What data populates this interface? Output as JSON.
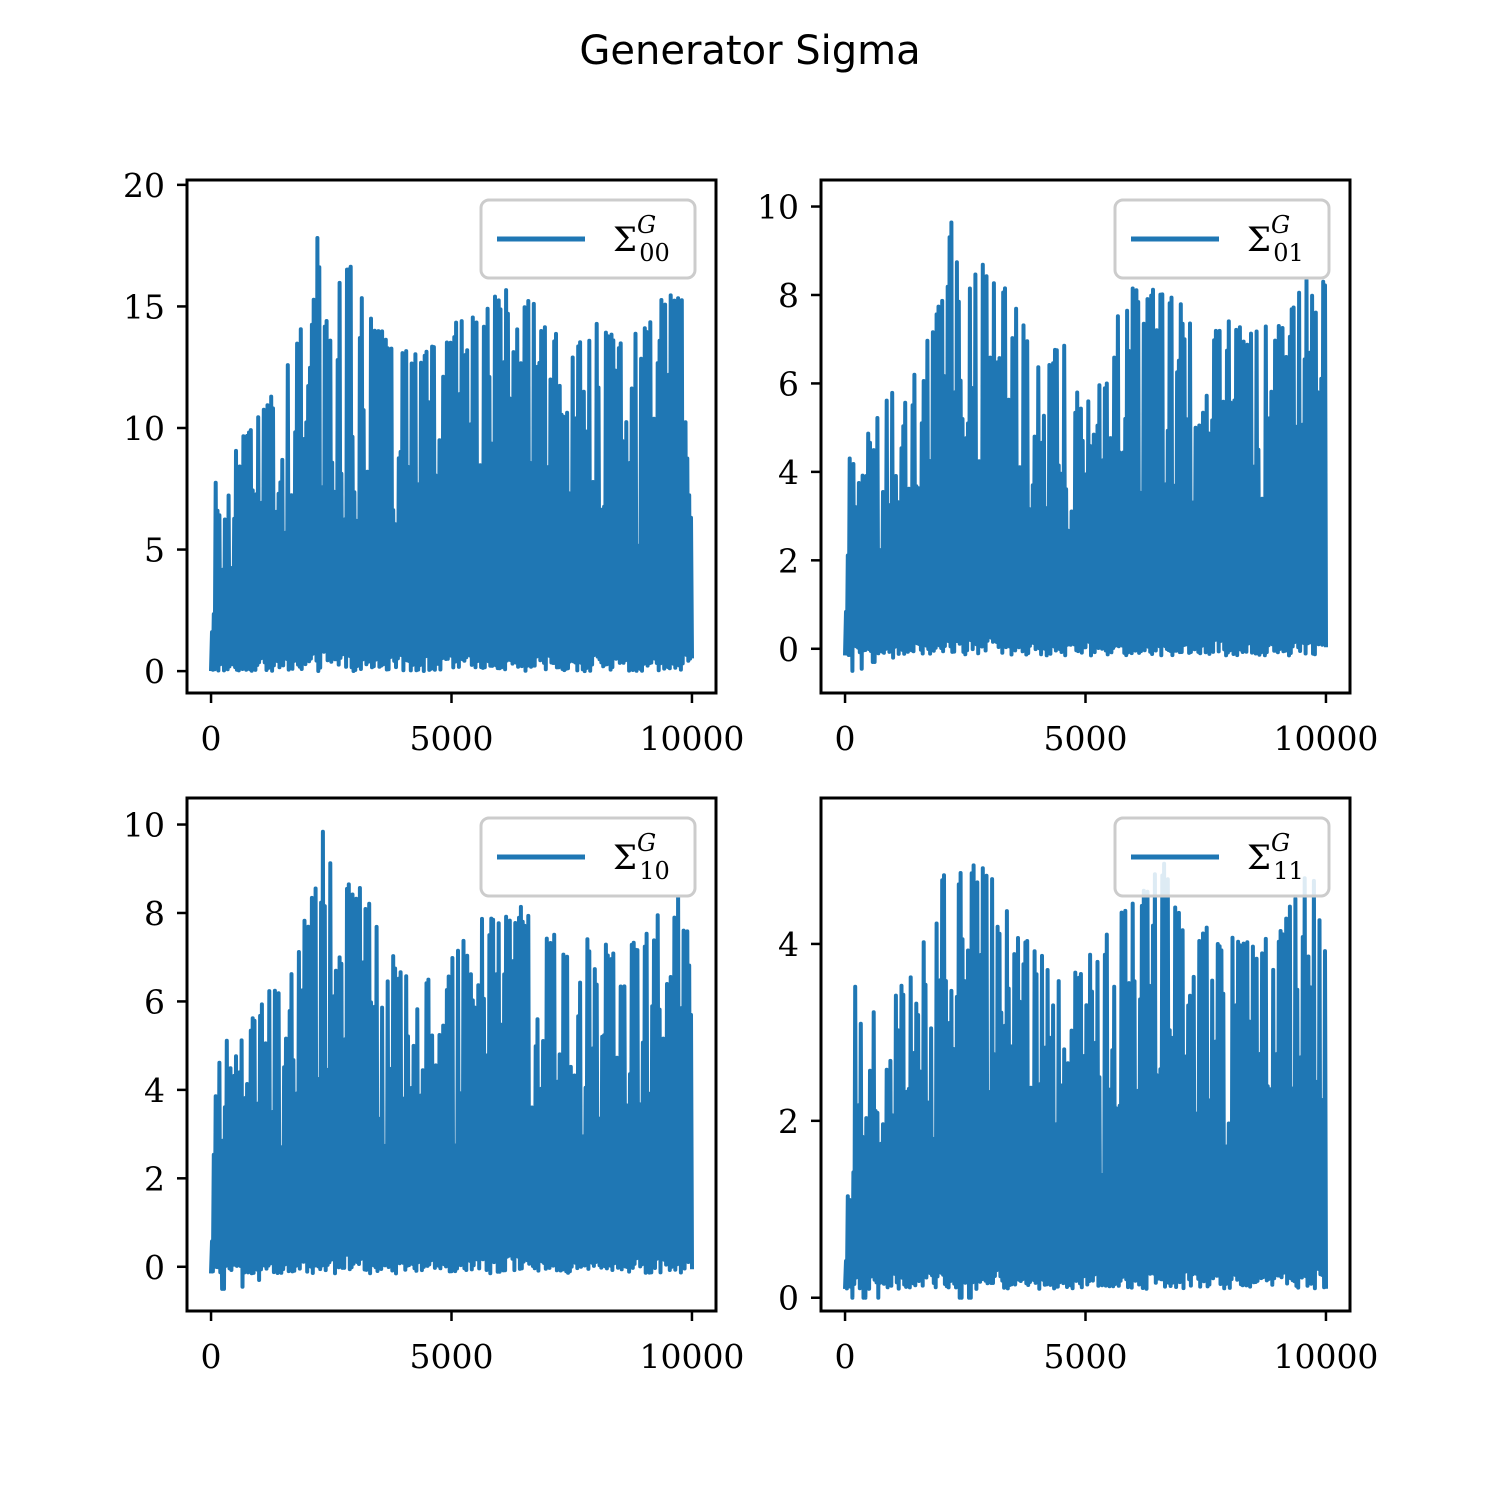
{
  "figure": {
    "title": "Generator Sigma"
  },
  "chart_data": [
    {
      "type": "line",
      "panel": "top-left",
      "series": [
        {
          "name": "Σ",
          "sup": "G",
          "sub": "00",
          "color": "#1f77b4"
        }
      ],
      "x_range": [
        0,
        10000
      ],
      "xlim": [
        -500,
        10500
      ],
      "ylim": [
        -0.9,
        20.2
      ],
      "xticks": [
        0,
        5000,
        10000
      ],
      "yticks": [
        0,
        5,
        10,
        15,
        20
      ],
      "xtick_labels": [
        "0",
        "5000",
        "10000"
      ],
      "ytick_labels": [
        "0",
        "5",
        "10",
        "15",
        "20"
      ],
      "grid": false,
      "legend": "upper right",
      "min_value": 0.0,
      "dips": [],
      "envelope": [
        [
          0,
          0
        ],
        [
          100,
          8.5
        ],
        [
          300,
          8.4
        ],
        [
          600,
          9.4
        ],
        [
          900,
          10.5
        ],
        [
          1300,
          11.6
        ],
        [
          1700,
          13.0
        ],
        [
          2000,
          15.2
        ],
        [
          2200,
          18.9
        ],
        [
          2250,
          19.3
        ],
        [
          2400,
          18.4
        ],
        [
          2600,
          16.6
        ],
        [
          3000,
          16.8
        ],
        [
          3200,
          14.8
        ],
        [
          3700,
          13.8
        ],
        [
          4000,
          13.7
        ],
        [
          4500,
          13.2
        ],
        [
          4900,
          13.9
        ],
        [
          5200,
          14.6
        ],
        [
          5600,
          14.8
        ],
        [
          6000,
          15.7
        ],
        [
          6500,
          15.7
        ],
        [
          7000,
          14.5
        ],
        [
          7500,
          13.4
        ],
        [
          8000,
          14.8
        ],
        [
          8500,
          13.5
        ],
        [
          9000,
          14.4
        ],
        [
          9500,
          15.6
        ],
        [
          10000,
          16.3
        ]
      ]
    },
    {
      "type": "line",
      "panel": "top-right",
      "series": [
        {
          "name": "Σ",
          "sup": "G",
          "sub": "01",
          "color": "#1f77b4"
        }
      ],
      "x_range": [
        0,
        10000
      ],
      "xlim": [
        -500,
        10500
      ],
      "ylim": [
        -1.0,
        10.6
      ],
      "xticks": [
        0,
        5000,
        10000
      ],
      "yticks": [
        0,
        2,
        4,
        6,
        8,
        10
      ],
      "xtick_labels": [
        "0",
        "5000",
        "10000"
      ],
      "ytick_labels": [
        "0",
        "2",
        "4",
        "6",
        "8",
        "10"
      ],
      "grid": false,
      "legend": "upper right",
      "min_value": -0.15,
      "dips": [
        [
          150,
          -0.5
        ],
        [
          350,
          -0.45
        ],
        [
          600,
          -0.3
        ],
        [
          1000,
          -0.2
        ]
      ],
      "envelope": [
        [
          0,
          0
        ],
        [
          100,
          4.6
        ],
        [
          250,
          5.3
        ],
        [
          500,
          4.9
        ],
        [
          900,
          5.8
        ],
        [
          1200,
          6.4
        ],
        [
          1600,
          6.6
        ],
        [
          1900,
          7.8
        ],
        [
          2000,
          8.0
        ],
        [
          2200,
          9.9
        ],
        [
          2300,
          10.1
        ],
        [
          2500,
          9.5
        ],
        [
          2800,
          8.9
        ],
        [
          3200,
          8.5
        ],
        [
          3700,
          7.5
        ],
        [
          4000,
          6.6
        ],
        [
          4500,
          6.9
        ],
        [
          4900,
          7.0
        ],
        [
          5300,
          7.5
        ],
        [
          5600,
          7.7
        ],
        [
          6000,
          8.2
        ],
        [
          6500,
          8.3
        ],
        [
          7000,
          7.9
        ],
        [
          7500,
          7.2
        ],
        [
          8000,
          7.6
        ],
        [
          8500,
          7.2
        ],
        [
          9000,
          7.5
        ],
        [
          9500,
          8.4
        ],
        [
          10000,
          8.6
        ]
      ]
    },
    {
      "type": "line",
      "panel": "bottom-left",
      "series": [
        {
          "name": "Σ",
          "sup": "G",
          "sub": "10",
          "color": "#1f77b4"
        }
      ],
      "x_range": [
        0,
        10000
      ],
      "xlim": [
        -500,
        10500
      ],
      "ylim": [
        -1.0,
        10.6
      ],
      "xticks": [
        0,
        5000,
        10000
      ],
      "yticks": [
        0,
        2,
        4,
        6,
        8,
        10
      ],
      "xtick_labels": [
        "0",
        "5000",
        "10000"
      ],
      "ytick_labels": [
        "0",
        "2",
        "4",
        "6",
        "8",
        "10"
      ],
      "grid": false,
      "legend": "upper right",
      "min_value": -0.15,
      "dips": [
        [
          250,
          -0.5
        ],
        [
          650,
          -0.45
        ],
        [
          1000,
          -0.3
        ]
      ],
      "envelope": [
        [
          0,
          0
        ],
        [
          100,
          4.6
        ],
        [
          250,
          5.3
        ],
        [
          500,
          4.9
        ],
        [
          900,
          5.8
        ],
        [
          1200,
          6.4
        ],
        [
          1600,
          6.6
        ],
        [
          1900,
          7.8
        ],
        [
          2000,
          8.0
        ],
        [
          2200,
          9.9
        ],
        [
          2300,
          10.1
        ],
        [
          2500,
          9.5
        ],
        [
          2800,
          8.9
        ],
        [
          3200,
          8.5
        ],
        [
          3700,
          7.5
        ],
        [
          4000,
          6.6
        ],
        [
          4500,
          6.9
        ],
        [
          4900,
          7.0
        ],
        [
          5300,
          7.5
        ],
        [
          5600,
          7.9
        ],
        [
          6000,
          8.2
        ],
        [
          6500,
          8.3
        ],
        [
          7000,
          7.9
        ],
        [
          7500,
          7.2
        ],
        [
          8000,
          7.6
        ],
        [
          8500,
          7.2
        ],
        [
          9000,
          7.5
        ],
        [
          9500,
          8.4
        ],
        [
          10000,
          8.6
        ]
      ]
    },
    {
      "type": "line",
      "panel": "bottom-right",
      "series": [
        {
          "name": "Σ",
          "sup": "G",
          "sub": "11",
          "color": "#1f77b4"
        }
      ],
      "x_range": [
        0,
        10000
      ],
      "xlim": [
        -500,
        10500
      ],
      "ylim": [
        -0.15,
        5.65
      ],
      "xticks": [
        0,
        5000,
        10000
      ],
      "yticks": [
        0,
        2,
        4
      ],
      "xtick_labels": [
        "0",
        "5000",
        "10000"
      ],
      "ytick_labels": [
        "0",
        "2",
        "4"
      ],
      "grid": false,
      "legend": "upper right",
      "min_value": 0.1,
      "dips": [
        [
          150,
          0.0
        ],
        [
          400,
          0.0
        ],
        [
          700,
          0.0
        ],
        [
          2400,
          0.0
        ],
        [
          2600,
          0.0
        ]
      ],
      "envelope": [
        [
          0,
          0
        ],
        [
          100,
          2.4
        ],
        [
          200,
          3.7
        ],
        [
          350,
          3.0
        ],
        [
          500,
          2.3
        ],
        [
          600,
          3.9
        ],
        [
          800,
          3.3
        ],
        [
          1000,
          3.5
        ],
        [
          1300,
          3.6
        ],
        [
          1600,
          4.0
        ],
        [
          1900,
          4.5
        ],
        [
          2000,
          4.7
        ],
        [
          2200,
          5.5
        ],
        [
          2300,
          5.6
        ],
        [
          2500,
          5.2
        ],
        [
          2800,
          5.0
        ],
        [
          3200,
          4.9
        ],
        [
          3700,
          4.2
        ],
        [
          4000,
          3.9
        ],
        [
          4500,
          3.8
        ],
        [
          5000,
          3.9
        ],
        [
          5500,
          4.2
        ],
        [
          6000,
          4.6
        ],
        [
          6600,
          5.0
        ],
        [
          7000,
          4.4
        ],
        [
          7500,
          4.3
        ],
        [
          8000,
          4.1
        ],
        [
          8500,
          4.0
        ],
        [
          9000,
          4.2
        ],
        [
          9500,
          4.8
        ],
        [
          10000,
          4.9
        ]
      ]
    }
  ]
}
